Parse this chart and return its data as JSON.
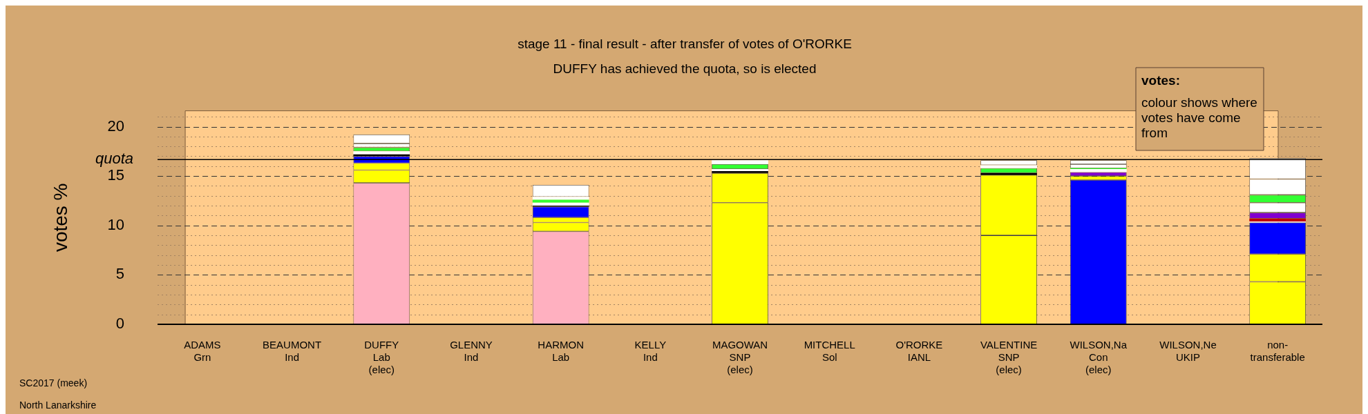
{
  "chart_data": {
    "type": "bar",
    "stacked": true,
    "title": "stage 11 - final result - after transfer of votes of O'RORKE",
    "subtitle": "DUFFY has achieved the quota, so is elected",
    "ylabel": "votes %",
    "categories": [
      "ADAMS\nGrn",
      "BEAUMONT\nInd",
      "DUFFY\nLab\n(elec)",
      "GLENNY\nInd",
      "HARMON\nLab",
      "KELLY\nInd",
      "MAGOWAN\nSNP\n(elec)",
      "MITCHELL\nSol",
      "O'RORKE\nIANL",
      "VALENTINE\nSNP\n(elec)",
      "WILSON,Na\nCon\n(elec)",
      "WILSON,Ne\nUKIP",
      "non-\ntransferable"
    ],
    "series": [
      {
        "values": [
          null,
          null,
          14.3,
          null,
          9.4,
          null,
          12.3,
          null,
          null,
          9.0,
          14.6,
          null,
          4.3
        ],
        "colors": [
          null,
          null,
          "#ffb0c0",
          null,
          "#ffb0c0",
          null,
          "#ffff00",
          null,
          null,
          "#ffff00",
          "#0000ff",
          null,
          "#ffff00"
        ]
      },
      {
        "values": [
          null,
          null,
          1.3,
          null,
          0.9,
          null,
          3.0,
          null,
          null,
          6.1,
          0.4,
          null,
          2.8
        ],
        "colors": [
          null,
          null,
          "#ffff00",
          null,
          "#ffff00",
          null,
          "#ffff00",
          null,
          null,
          "#ffff00",
          "#ffff00",
          null,
          "#ffff00"
        ]
      },
      {
        "values": [
          null,
          null,
          0.7,
          null,
          0.5,
          null,
          0.2,
          null,
          null,
          0.2,
          0.4,
          null,
          3.2
        ],
        "colors": [
          null,
          null,
          "#ffff00",
          null,
          "#ffff00",
          null,
          "#000000",
          null,
          null,
          "#000000",
          "#8000d0",
          null,
          "#0000ff"
        ]
      },
      {
        "values": [
          null,
          null,
          0.7,
          null,
          1.1,
          null,
          0.2,
          null,
          null,
          null,
          0.3,
          null,
          0.1
        ],
        "colors": [
          null,
          null,
          "#0000ff",
          null,
          "#0000ff",
          null,
          "#ffffff",
          null,
          null,
          null,
          "#ffffff",
          null,
          "#ffffff"
        ]
      },
      {
        "values": [
          null,
          null,
          0.2,
          null,
          0.1,
          null,
          0.5,
          null,
          null,
          0.5,
          0.1,
          null,
          0.3
        ],
        "colors": [
          null,
          null,
          "#000000",
          null,
          "#000000",
          null,
          "#33ff33",
          null,
          null,
          "#33ff33",
          "#33ff33",
          null,
          "#c00000"
        ]
      },
      {
        "values": [
          null,
          null,
          0.3,
          null,
          0.3,
          null,
          0.2,
          null,
          null,
          0.3,
          0.4,
          null,
          0.6
        ],
        "colors": [
          null,
          null,
          "#ffffff",
          null,
          "#ffffff",
          null,
          "#ffffff",
          null,
          null,
          "#ffffff",
          "#ffffff",
          null,
          "#8000d0"
        ]
      },
      {
        "values": [
          null,
          null,
          0.4,
          null,
          0.3,
          null,
          0.2,
          null,
          null,
          0.5,
          0.4,
          null,
          1.0
        ],
        "colors": [
          null,
          null,
          "#33ff33",
          null,
          "#33ff33",
          null,
          "#ffffff",
          null,
          null,
          "#ffffff",
          "#ffffff",
          null,
          "#ffffff"
        ]
      },
      {
        "values": [
          null,
          null,
          0.4,
          null,
          0.3,
          null,
          null,
          null,
          null,
          null,
          null,
          null,
          0.8
        ],
        "colors": [
          null,
          null,
          "#ffffff",
          null,
          "#ffffff",
          null,
          null,
          null,
          null,
          null,
          null,
          null,
          "#33ff33"
        ]
      },
      {
        "values": [
          null,
          null,
          0.9,
          null,
          1.2,
          null,
          null,
          null,
          null,
          null,
          null,
          null,
          1.6
        ],
        "colors": [
          null,
          null,
          "#ffffff",
          null,
          "#ffffff",
          null,
          null,
          null,
          null,
          null,
          null,
          null,
          "#ffffff"
        ]
      },
      {
        "values": [
          null,
          null,
          null,
          null,
          null,
          null,
          null,
          null,
          null,
          null,
          null,
          null,
          2.1
        ],
        "colors": [
          null,
          null,
          null,
          null,
          null,
          null,
          null,
          null,
          null,
          null,
          null,
          null,
          "#ffffff"
        ]
      }
    ],
    "ylim": [
      0,
      21.6
    ],
    "yticks": [
      0,
      {
        "value": 1,
        "label": null
      },
      {
        "value": 2,
        "label": null
      },
      {
        "value": 3,
        "label": null
      },
      {
        "value": 4,
        "label": null
      },
      5,
      {
        "value": 6,
        "label": null
      },
      {
        "value": 7,
        "label": null
      },
      {
        "value": 8,
        "label": null
      },
      {
        "value": 9,
        "label": null
      },
      10,
      {
        "value": 11,
        "label": null
      },
      {
        "value": 12,
        "label": null
      },
      {
        "value": 13,
        "label": null
      },
      {
        "value": 14,
        "label": null
      },
      15,
      {
        "value": 16,
        "label": null
      },
      {
        "value": 17,
        "label": null
      },
      {
        "value": 18,
        "label": null
      },
      {
        "value": 19,
        "label": null
      },
      20,
      {
        "value": 21,
        "label": null
      }
    ],
    "grid": "y",
    "legend": false,
    "ref_lines": [
      {
        "axis": "y",
        "value": 16.67,
        "label": "quota",
        "color": "#000000"
      }
    ],
    "annotations": [
      "votes:",
      "colour shows where votes have come from",
      "SC2017 (meek)",
      "North Lanarkshire"
    ]
  }
}
